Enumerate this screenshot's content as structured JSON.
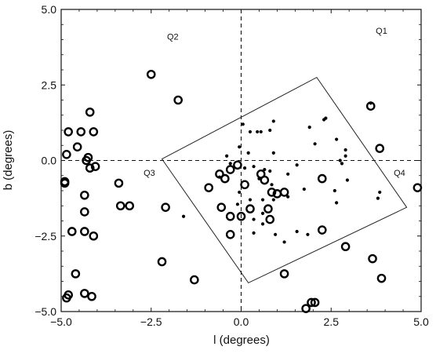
{
  "chart_data": {
    "type": "scatter",
    "title": "",
    "xlabel": "l (degrees)",
    "ylabel": "b (degrees)",
    "xlim": [
      -5.0,
      5.0
    ],
    "ylim": [
      -5.0,
      5.0
    ],
    "grid": false,
    "x_ticks": [
      -5.0,
      -2.5,
      0.0,
      2.5,
      5.0
    ],
    "y_ticks": [
      -5.0,
      -2.5,
      0.0,
      2.5,
      5.0
    ],
    "x_tick_labels": [
      "−5.0",
      "−2.5",
      "0.0",
      "2.5",
      "5.0"
    ],
    "y_tick_labels": [
      "−5.0",
      "−2.5",
      "0.0",
      "2.5",
      "5.0"
    ],
    "reference_lines": {
      "x": 0,
      "y": 0,
      "style": "dashed"
    },
    "quadrant_labels": [
      {
        "text": "Q1",
        "x": 3.9,
        "y": 4.2
      },
      {
        "text": "Q2",
        "x": -1.9,
        "y": 4.0
      },
      {
        "text": "Q3",
        "x": -2.55,
        "y": -0.5
      },
      {
        "text": "Q4",
        "x": 4.4,
        "y": -0.5
      }
    ],
    "region_polygon": [
      [
        -2.2,
        0.05
      ],
      [
        2.1,
        2.75
      ],
      [
        4.6,
        -1.55
      ],
      [
        0.2,
        -4.05
      ]
    ],
    "series": [
      {
        "marker": "open-circle",
        "points": [
          [
            -4.8,
            0.95
          ],
          [
            -4.85,
            0.2
          ],
          [
            -4.55,
            0.45
          ],
          [
            -4.45,
            0.95
          ],
          [
            -4.3,
            0.0
          ],
          [
            -4.25,
            0.1
          ],
          [
            -4.2,
            -0.25
          ],
          [
            -4.05,
            -0.2
          ],
          [
            -4.2,
            1.6
          ],
          [
            -4.1,
            0.95
          ],
          [
            -4.9,
            -0.7
          ],
          [
            -4.9,
            -0.75
          ],
          [
            -4.35,
            -1.15
          ],
          [
            -4.35,
            -1.7
          ],
          [
            -4.7,
            -2.35
          ],
          [
            -4.35,
            -2.35
          ],
          [
            -4.1,
            -2.5
          ],
          [
            -4.6,
            -3.75
          ],
          [
            -4.8,
            -4.45
          ],
          [
            -4.85,
            -4.55
          ],
          [
            -4.35,
            -4.4
          ],
          [
            -4.15,
            -4.5
          ],
          [
            -3.4,
            -0.75
          ],
          [
            -3.35,
            -1.5
          ],
          [
            -3.1,
            -1.5
          ],
          [
            -2.5,
            2.85
          ],
          [
            -1.75,
            2.0
          ],
          [
            -2.1,
            -1.55
          ],
          [
            -2.2,
            -3.35
          ],
          [
            -1.3,
            -3.95
          ],
          [
            -0.9,
            -0.9
          ],
          [
            -0.6,
            -0.45
          ],
          [
            -0.45,
            -0.6
          ],
          [
            -0.3,
            -0.3
          ],
          [
            -0.1,
            -0.15
          ],
          [
            0.1,
            -0.8
          ],
          [
            -0.55,
            -1.55
          ],
          [
            -0.3,
            -1.85
          ],
          [
            0.0,
            -1.85
          ],
          [
            0.25,
            -1.6
          ],
          [
            -0.3,
            -2.45
          ],
          [
            0.55,
            -0.45
          ],
          [
            0.65,
            -0.65
          ],
          [
            0.85,
            -1.05
          ],
          [
            1.0,
            -1.1
          ],
          [
            1.2,
            -1.05
          ],
          [
            0.75,
            -1.6
          ],
          [
            0.8,
            -1.95
          ],
          [
            2.25,
            -0.6
          ],
          [
            2.25,
            -2.3
          ],
          [
            1.2,
            -3.75
          ],
          [
            2.9,
            -2.85
          ],
          [
            1.8,
            -4.9
          ],
          [
            1.95,
            -4.7
          ],
          [
            2.05,
            -4.7
          ],
          [
            3.65,
            -3.25
          ],
          [
            3.9,
            -3.9
          ],
          [
            4.9,
            -0.9
          ],
          [
            3.6,
            1.8
          ],
          [
            3.85,
            0.4
          ]
        ]
      },
      {
        "marker": "filled-dot",
        "points": [
          [
            0.05,
            1.2
          ],
          [
            0.25,
            0.95
          ],
          [
            0.45,
            0.95
          ],
          [
            0.55,
            0.95
          ],
          [
            0.8,
            1.0
          ],
          [
            0.9,
            1.3
          ],
          [
            0.9,
            0.25
          ],
          [
            0.2,
            0.25
          ],
          [
            -0.05,
            0.45
          ],
          [
            -0.4,
            0.15
          ],
          [
            -0.3,
            -0.1
          ],
          [
            0.1,
            -0.25
          ],
          [
            0.35,
            -0.2
          ],
          [
            0.65,
            -0.3
          ],
          [
            0.8,
            -0.35
          ],
          [
            0.5,
            -0.6
          ],
          [
            0.85,
            -0.8
          ],
          [
            1.3,
            -0.45
          ],
          [
            1.55,
            -0.15
          ],
          [
            1.3,
            -1.2
          ],
          [
            0.9,
            -1.3
          ],
          [
            0.6,
            -1.3
          ],
          [
            0.25,
            -1.3
          ],
          [
            -0.05,
            -1.05
          ],
          [
            -0.1,
            -1.45
          ],
          [
            0.6,
            -1.75
          ],
          [
            0.35,
            -1.95
          ],
          [
            0.6,
            -2.1
          ],
          [
            0.35,
            -2.4
          ],
          [
            0.95,
            -2.45
          ],
          [
            1.55,
            -2.35
          ],
          [
            1.2,
            -2.7
          ],
          [
            1.85,
            -2.45
          ],
          [
            1.9,
            1.1
          ],
          [
            2.05,
            0.55
          ],
          [
            2.3,
            1.35
          ],
          [
            2.35,
            1.4
          ],
          [
            2.65,
            0.7
          ],
          [
            2.9,
            0.35
          ],
          [
            2.9,
            0.15
          ],
          [
            2.75,
            0.0
          ],
          [
            2.8,
            -0.1
          ],
          [
            2.95,
            -0.65
          ],
          [
            2.6,
            -1.0
          ],
          [
            2.65,
            -1.4
          ],
          [
            1.75,
            -0.95
          ],
          [
            3.6,
            1.9
          ],
          [
            3.85,
            -1.05
          ],
          [
            3.8,
            -1.25
          ],
          [
            -1.6,
            -1.85
          ],
          [
            -0.6,
            -0.55
          ]
        ]
      }
    ]
  }
}
